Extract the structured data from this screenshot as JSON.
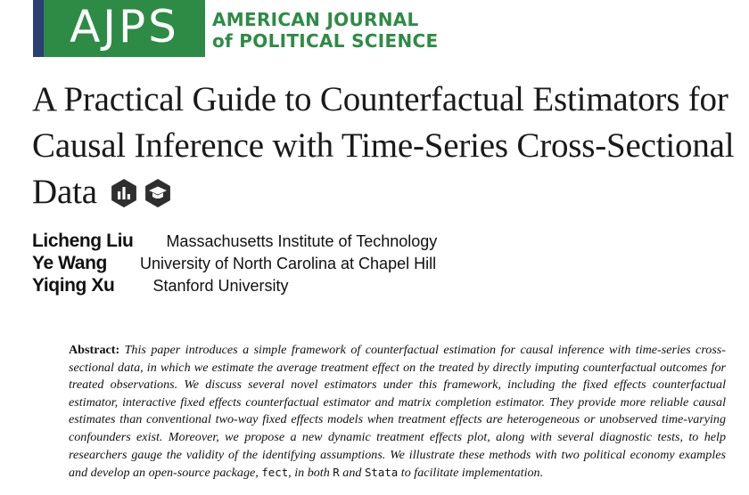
{
  "journal": {
    "logo_text": "AJPS",
    "name_line1": "AMERICAN JOURNAL",
    "name_line2": "of POLITICAL SCIENCE",
    "colors": {
      "green": "#2e8b45",
      "navy": "#2b3f73"
    }
  },
  "title": {
    "text": "A Practical Guide to Counterfactual Estimators for Causal Inference with Time-Series Cross-Sectional Data",
    "badges": [
      {
        "icon": "open-data-icon"
      },
      {
        "icon": "open-materials-icon"
      }
    ]
  },
  "authors": [
    {
      "name": "Licheng Liu",
      "affiliation": "Massachusetts Institute of Technology"
    },
    {
      "name": "Ye Wang",
      "affiliation": "University of North Carolina at Chapel Hill"
    },
    {
      "name": "Yiqing Xu",
      "affiliation": "Stanford University"
    }
  ],
  "abstract": {
    "label": "Abstract:",
    "text_1": "This paper introduces a simple framework of counterfactual estimation for causal inference with time-series cross-sectional data, in which we estimate the average treatment effect on the treated by directly imputing counterfactual outcomes for treated observations. We discuss several novel estimators under this framework, including the fixed effects counterfactual estimator, interactive fixed effects counterfactual estimator and matrix completion estimator. They provide more reliable causal estimates than conventional two-way fixed effects models when treatment effects are heterogeneous or unobserved time-varying confounders exist. Moreover, we propose a new dynamic treatment effects plot, along with several diagnostic tests, to help researchers gauge the validity of the identifying assumptions. We illustrate these methods with two political economy examples and develop an open-source package,",
    "code_1": "fect",
    "text_2": ", in both",
    "code_2": "R",
    "text_3": "and",
    "code_3": "Stata",
    "text_4": "to facilitate implementation."
  }
}
